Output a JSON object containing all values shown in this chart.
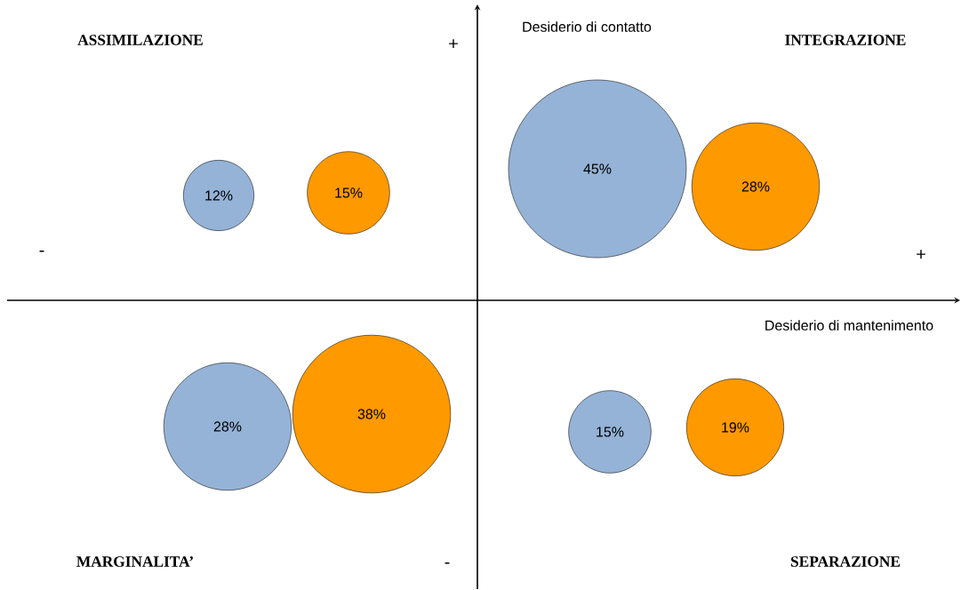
{
  "chart_data": {
    "type": "other",
    "xlabel": "Desiderio di mantenimento",
    "ylabel": "Desiderio di contatto",
    "categories": [
      "ASSIMILAZIONE",
      "INTEGRAZIONE",
      "MARGINALITA’",
      "SEPARAZIONE"
    ],
    "annotations": [
      "+",
      "-",
      "+",
      "-"
    ],
    "series": [
      {
        "color": "#95b3d7",
        "values": [
          12,
          45,
          28,
          15
        ],
        "value_labels": [
          "12%",
          "45%",
          "28%",
          "15%"
        ]
      },
      {
        "color": "#ff9900",
        "values": [
          15,
          28,
          38,
          19
        ],
        "value_labels": [
          "15%",
          "28%",
          "38%",
          "19%"
        ]
      }
    ]
  }
}
